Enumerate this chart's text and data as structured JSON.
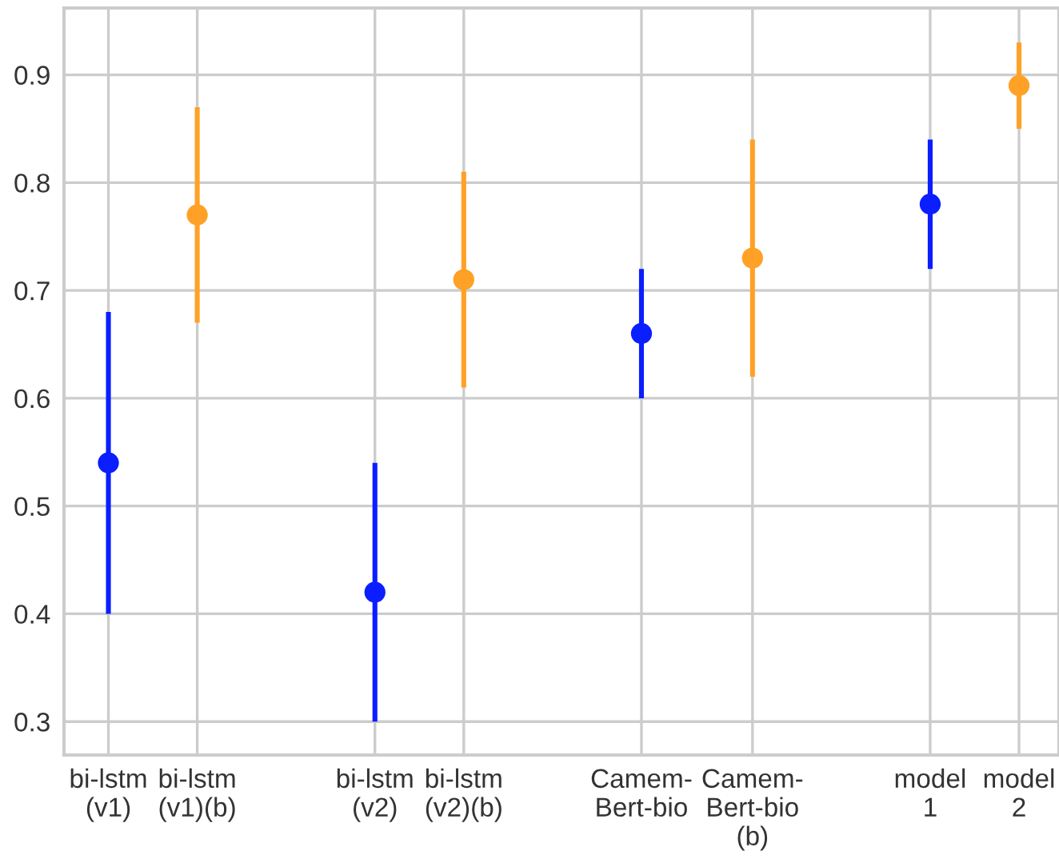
{
  "chart_data": {
    "type": "scatter",
    "marker": "circle",
    "grid": true,
    "categories": [
      "bi-lstm\n(v1)",
      null,
      null,
      null,
      "bi-lstm\n(v1)(b)",
      null,
      null,
      null,
      null,
      null,
      null,
      null,
      "bi-lstm\n(v2)",
      null,
      null,
      null,
      "bi-lstm\n(v2)(b)",
      null,
      null,
      null,
      null,
      null,
      null,
      null,
      "Camem-\nBert-bio",
      null,
      null,
      null,
      null,
      "Camem-\nBert-bio\n(b)",
      null,
      null,
      null,
      null,
      null,
      null,
      null,
      "model\n1",
      null,
      null,
      null,
      "model\n2"
    ],
    "ylim": [
      0.269,
      0.962
    ],
    "yticks": [
      0.3,
      0.4,
      0.5,
      0.6,
      0.7,
      0.8,
      0.9
    ],
    "series": [
      {
        "color": "#0a1eff",
        "values": [
          0.54,
          null,
          null,
          null,
          null,
          null,
          null,
          null,
          null,
          null,
          null,
          null,
          0.42,
          null,
          null,
          null,
          null,
          null,
          null,
          null,
          null,
          null,
          null,
          null,
          0.66,
          null,
          null,
          null,
          null,
          null,
          null,
          null,
          null,
          null,
          null,
          null,
          null,
          0.78,
          null,
          null,
          null,
          null
        ],
        "errors": [
          [
            0.4,
            0.68
          ],
          null,
          null,
          null,
          null,
          null,
          null,
          null,
          null,
          null,
          null,
          null,
          [
            0.3,
            0.54
          ],
          null,
          null,
          null,
          null,
          null,
          null,
          null,
          null,
          null,
          null,
          null,
          [
            0.6,
            0.72
          ],
          null,
          null,
          null,
          null,
          null,
          null,
          null,
          null,
          null,
          null,
          null,
          null,
          [
            0.72,
            0.84
          ],
          null,
          null,
          null,
          null
        ]
      },
      {
        "color": "#ffa126",
        "values": [
          null,
          null,
          null,
          null,
          0.77,
          null,
          null,
          null,
          null,
          null,
          null,
          null,
          null,
          null,
          null,
          null,
          0.71,
          null,
          null,
          null,
          null,
          null,
          null,
          null,
          null,
          null,
          null,
          null,
          null,
          0.73,
          null,
          null,
          null,
          null,
          null,
          null,
          null,
          null,
          null,
          null,
          null,
          0.89
        ],
        "errors": [
          null,
          null,
          null,
          null,
          [
            0.67,
            0.87
          ],
          null,
          null,
          null,
          null,
          null,
          null,
          null,
          null,
          null,
          null,
          null,
          [
            0.61,
            0.81
          ],
          null,
          null,
          null,
          null,
          null,
          null,
          null,
          null,
          null,
          null,
          null,
          null,
          [
            0.62,
            0.84
          ],
          null,
          null,
          null,
          null,
          null,
          null,
          null,
          null,
          null,
          null,
          null,
          [
            0.85,
            0.93
          ]
        ]
      }
    ]
  }
}
